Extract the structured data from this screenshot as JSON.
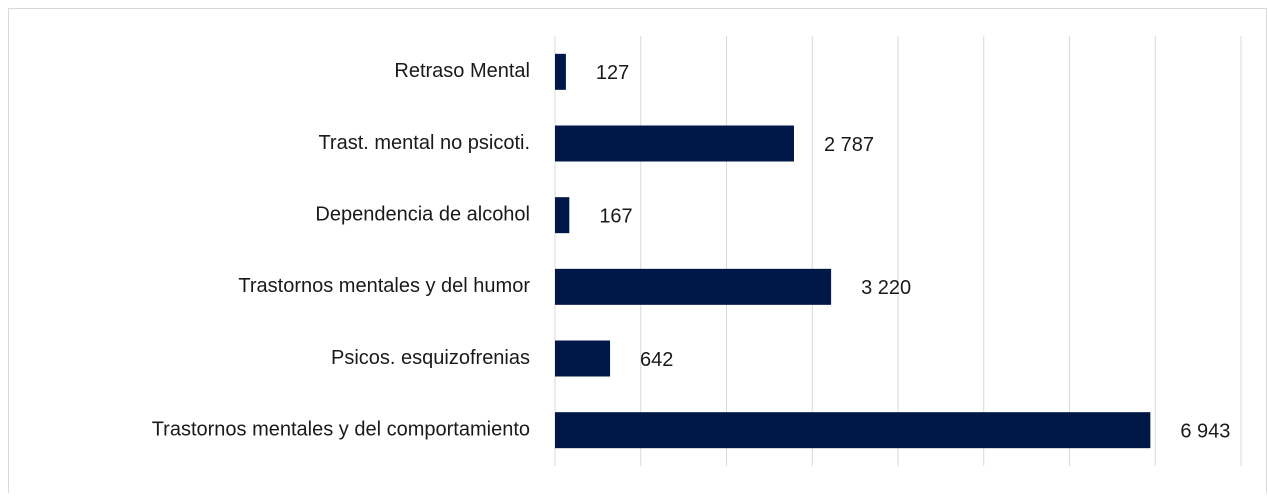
{
  "chart_data": {
    "type": "barh",
    "categories": [
      "Retraso Mental",
      "Trast. mental no psicoti.",
      "Dependencia de alcohol",
      "Trastornos mentales y del humor",
      "Psicos. esquizofrenias",
      "Trastornos mentales y del comportamiento"
    ],
    "values": [
      127,
      2787,
      167,
      3220,
      642,
      6943
    ],
    "value_labels": [
      "127",
      "2 787",
      "167",
      "3 220",
      "642",
      "6 943"
    ],
    "color": "#001848",
    "xlim": [
      0,
      8000
    ],
    "xticks": [
      0,
      1000,
      2000,
      3000,
      4000,
      5000,
      6000,
      7000,
      8000
    ],
    "grid": true
  }
}
